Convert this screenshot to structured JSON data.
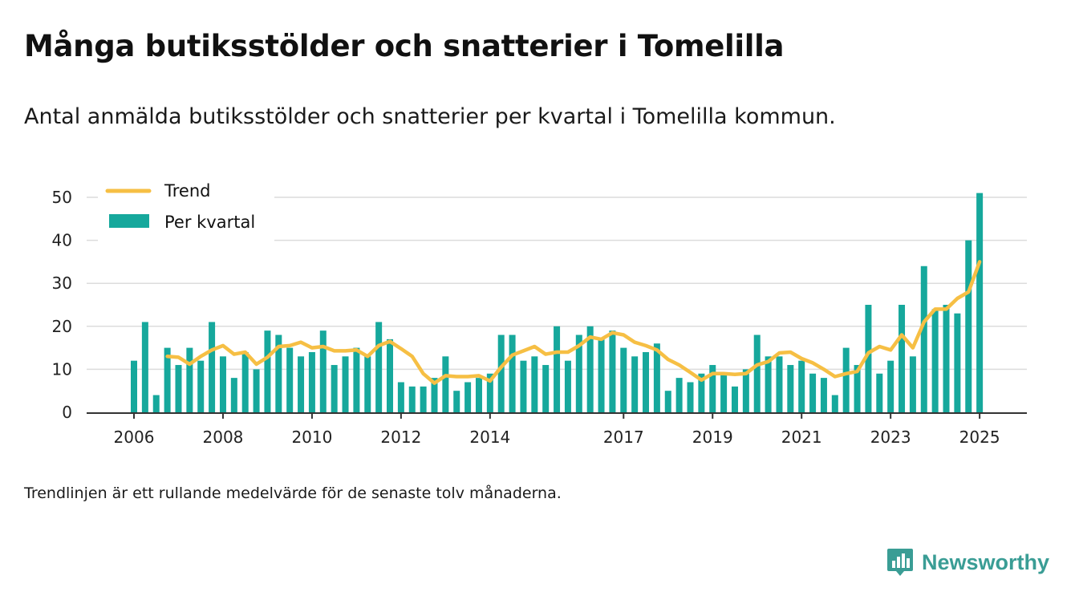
{
  "header": {
    "title": "Många butiksstölder och snatterier i Tomelilla",
    "subtitle": "Antal anmälda butiksstölder och snatterier per kvartal i Tomelilla kommun."
  },
  "footer": {
    "note": "Trendlinjen är ett rullande medelvärde för de senaste tolv månaderna.",
    "brand": "Newsworthy",
    "brand_icon": "newsworthy-logo-icon"
  },
  "chart_data": {
    "type": "bar",
    "x_start": "2006 Q1",
    "period": "kvartal",
    "values": [
      12,
      21,
      4,
      15,
      11,
      15,
      12,
      21,
      13,
      8,
      14,
      10,
      19,
      18,
      15,
      13,
      14,
      19,
      11,
      13,
      15,
      13,
      21,
      17,
      7,
      6,
      6,
      8,
      13,
      5,
      7,
      8,
      9,
      18,
      18,
      12,
      13,
      11,
      20,
      12,
      18,
      20,
      17,
      19,
      15,
      13,
      14,
      16,
      5,
      8,
      7,
      9,
      11,
      9,
      6,
      10,
      18,
      13,
      13,
      11,
      12,
      9,
      8,
      4,
      15,
      11,
      25,
      9,
      12,
      25,
      13,
      34,
      24,
      25,
      23,
      40,
      51
    ],
    "trend": [
      null,
      null,
      null,
      13.0,
      12.8,
      11.2,
      13.0,
      14.5,
      15.5,
      13.5,
      14.0,
      11.2,
      12.8,
      15.3,
      15.5,
      16.3,
      15.0,
      15.3,
      14.3,
      14.3,
      14.5,
      13.0,
      15.5,
      16.5,
      14.8,
      13.0,
      9.0,
      6.8,
      8.5,
      8.3,
      8.3,
      8.5,
      7.3,
      10.5,
      13.3,
      14.3,
      15.3,
      13.5,
      14.0,
      14.0,
      15.5,
      17.5,
      17.0,
      18.5,
      18.0,
      16.3,
      15.5,
      14.5,
      12.3,
      11.0,
      9.3,
      7.5,
      9.0,
      9.0,
      8.8,
      9.0,
      11.0,
      11.8,
      13.8,
      14.0,
      12.5,
      11.5,
      10.0,
      8.3,
      9.0,
      9.5,
      13.8,
      15.3,
      14.5,
      18.0,
      15.0,
      21.0,
      24.0,
      24.0,
      26.5,
      28.0,
      35.0
    ],
    "x_ticks": [
      {
        "label": "2006",
        "index": 0
      },
      {
        "label": "2008",
        "index": 8
      },
      {
        "label": "2010",
        "index": 16
      },
      {
        "label": "2012",
        "index": 24
      },
      {
        "label": "2014",
        "index": 32
      },
      {
        "label": "2017",
        "index": 44
      },
      {
        "label": "2019",
        "index": 52
      },
      {
        "label": "2021",
        "index": 60
      },
      {
        "label": "2023",
        "index": 68
      },
      {
        "label": "2025",
        "index": 76
      }
    ],
    "y_ticks": [
      0,
      10,
      20,
      30,
      40,
      50
    ],
    "ylim": [
      0,
      52
    ],
    "grid": true,
    "legend_position": "top-left",
    "series": [
      {
        "name": "Trend",
        "type": "line",
        "color": "#f6bf44"
      },
      {
        "name": "Per kvartal",
        "type": "bar",
        "color": "#16a89c"
      }
    ]
  }
}
